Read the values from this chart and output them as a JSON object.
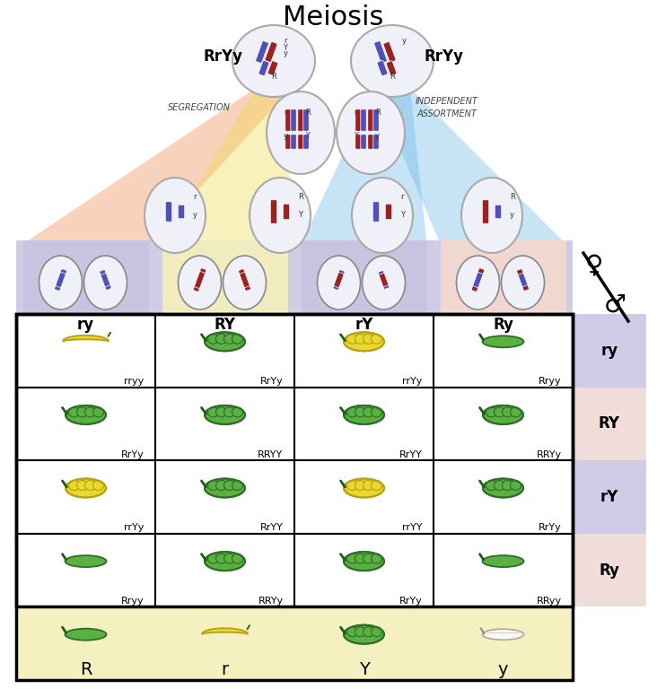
{
  "title": "Meiosis",
  "background_color": "#ffffff",
  "fig_width": 7.42,
  "fig_height": 7.68,
  "punnett_cells": [
    [
      "rryy",
      "RrYy",
      "rrYy",
      "Rryy"
    ],
    [
      "RrYy",
      "RRYY",
      "RrYY",
      "RRYy"
    ],
    [
      "rrYy",
      "RrYY",
      "rrYY",
      "RrYy"
    ],
    [
      "Rryy",
      "RRYy",
      "RrYy",
      "RRyy"
    ]
  ],
  "bottom_row_labels": [
    "R",
    "r",
    "Y",
    "y"
  ],
  "row_side_labels": [
    "ry",
    "RY",
    "rY",
    "Ry"
  ],
  "row_side_bg_colors": [
    "#d0cce8",
    "#f0dcd8",
    "#d0cce8",
    "#f0dcd8"
  ],
  "gamete_labels": [
    "ry",
    "RY",
    "rY",
    "Ry"
  ],
  "bottom_bg": "#f5f0c0",
  "female_symbol": "♀",
  "male_symbol": "♂"
}
